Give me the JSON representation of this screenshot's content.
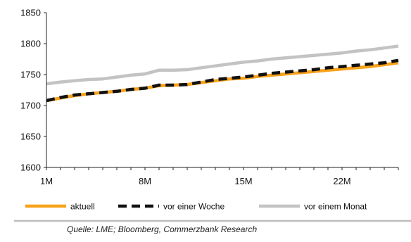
{
  "chart_data": {
    "type": "line",
    "title": "",
    "xlabel": "",
    "ylabel": "",
    "x_tick_labels": [
      "1M",
      "8M",
      "15M",
      "22M"
    ],
    "x_tick_positions": [
      1,
      8,
      15,
      22
    ],
    "xlim": [
      1,
      26
    ],
    "ylim": [
      1600,
      1850
    ],
    "y_ticks": [
      1600,
      1650,
      1700,
      1750,
      1800,
      1850
    ],
    "grid": false,
    "legend_position": "bottom",
    "x": [
      1,
      2,
      3,
      4,
      5,
      6,
      7,
      8,
      9,
      10,
      11,
      12,
      13,
      14,
      15,
      16,
      17,
      18,
      19,
      20,
      21,
      22,
      23,
      24,
      25,
      26
    ],
    "series": [
      {
        "name": "aktuell",
        "color": "#f7a21b",
        "style": "solid",
        "values": [
          1708,
          1712,
          1716,
          1719,
          1721,
          1723,
          1726,
          1728,
          1732,
          1733,
          1734,
          1737,
          1740,
          1743,
          1744,
          1747,
          1749,
          1751,
          1753,
          1755,
          1757,
          1759,
          1761,
          1763,
          1766,
          1769
        ]
      },
      {
        "name": "vor einer Woche",
        "color": "#111111",
        "style": "dashed",
        "values": [
          1708,
          1713,
          1717,
          1719,
          1721,
          1723,
          1726,
          1728,
          1733,
          1733,
          1734,
          1738,
          1742,
          1744,
          1746,
          1749,
          1752,
          1754,
          1756,
          1758,
          1761,
          1763,
          1765,
          1767,
          1769,
          1773
        ]
      },
      {
        "name": "vor einem Monat",
        "color": "#c3c3c3",
        "style": "solid",
        "values": [
          1735,
          1738,
          1740,
          1742,
          1743,
          1746,
          1749,
          1751,
          1757,
          1757,
          1758,
          1761,
          1764,
          1767,
          1770,
          1772,
          1775,
          1777,
          1779,
          1781,
          1783,
          1785,
          1788,
          1790,
          1793,
          1796
        ]
      }
    ]
  },
  "source_text": "Quelle: LME; Bloomberg, Commerzbank Research"
}
